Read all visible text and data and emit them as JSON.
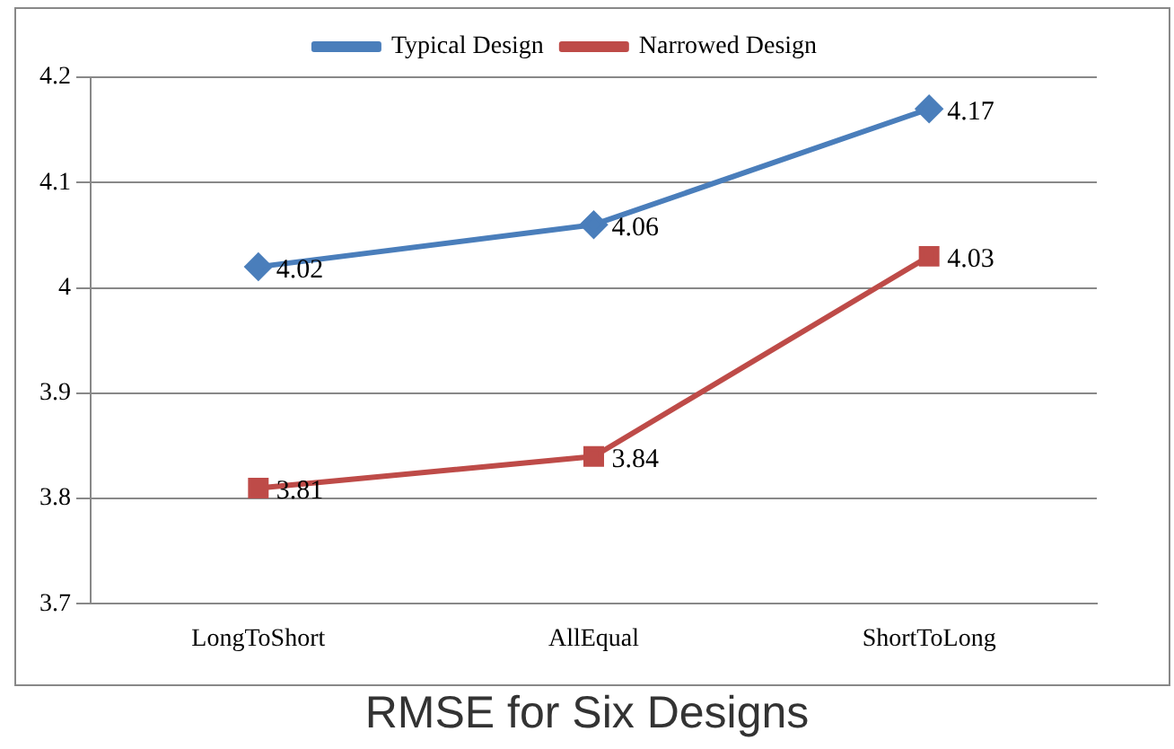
{
  "chart_data": {
    "type": "line",
    "title": "RMSE for Six Designs",
    "categories": [
      "LongToShort",
      "AllEqual",
      "ShortToLong"
    ],
    "series": [
      {
        "name": "Typical Design",
        "color": "#4a7ebb",
        "values": [
          4.02,
          4.06,
          4.17
        ],
        "marker": "diamond"
      },
      {
        "name": "Narrowed Design",
        "color": "#be4b48",
        "values": [
          3.81,
          3.84,
          4.03
        ],
        "marker": "square"
      }
    ],
    "ylim": [
      3.7,
      4.2
    ],
    "yticks": [
      3.7,
      3.8,
      3.9,
      4,
      4.1,
      4.2
    ],
    "grid": "y",
    "legend": "top",
    "data_labels": true
  }
}
